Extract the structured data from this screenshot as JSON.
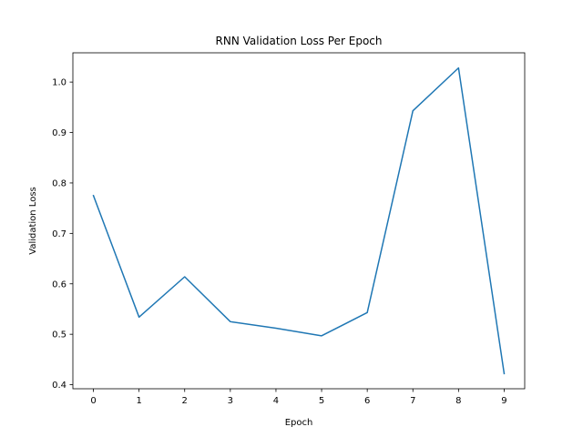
{
  "chart_data": {
    "type": "line",
    "title": "RNN Validation Loss Per Epoch",
    "xlabel": "Epoch",
    "ylabel": "Validation Loss",
    "x": [
      0,
      1,
      2,
      3,
      4,
      5,
      6,
      7,
      8,
      9
    ],
    "series": [
      {
        "values": [
          0.775,
          0.534,
          0.614,
          0.525,
          0.512,
          0.497,
          0.543,
          0.943,
          1.028,
          0.422
        ],
        "color": "#1f77b4"
      }
    ],
    "xlim": [
      -0.45,
      9.45
    ],
    "ylim": [
      0.392,
      1.058
    ],
    "xticks": [
      "0",
      "1",
      "2",
      "3",
      "4",
      "5",
      "6",
      "7",
      "8",
      "9"
    ],
    "yticks": [
      "0.4",
      "0.5",
      "0.6",
      "0.7",
      "0.8",
      "0.9",
      "1.0"
    ],
    "grid": false,
    "legend": "none"
  }
}
